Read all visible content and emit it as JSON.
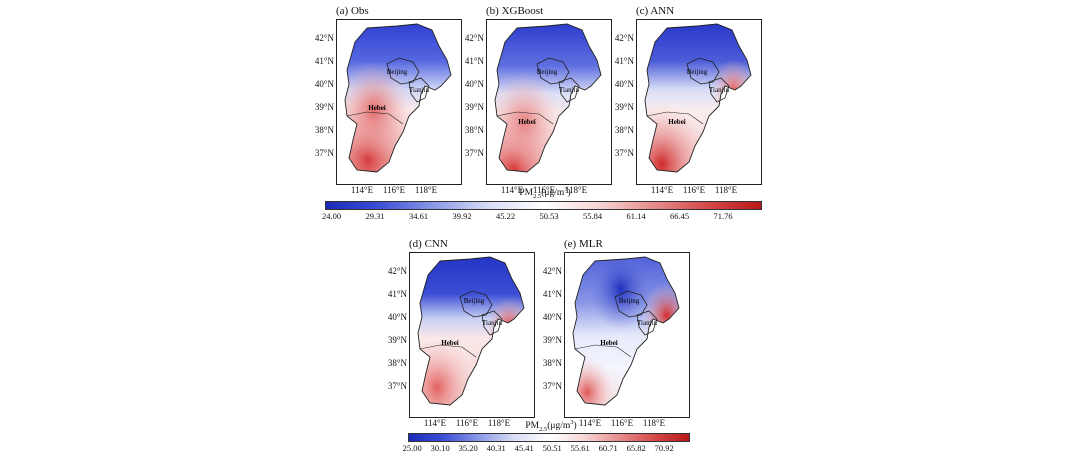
{
  "color_scale": {
    "low": "#1f30c8",
    "mid": "#ffffff",
    "high": "#d42020"
  },
  "lat_labels": [
    "42°N",
    "41°N",
    "40°N",
    "39°N",
    "38°N",
    "37°N"
  ],
  "lon_labels": [
    "114°E",
    "116°E",
    "118°E"
  ],
  "region_labels": {
    "beijing": "Beijing",
    "tianjin": "Tianjin",
    "hebei": "Hebei"
  },
  "panels": [
    {
      "title": "(a) Obs"
    },
    {
      "title": "(b) XGBoost"
    },
    {
      "title": "(c) ANN"
    },
    {
      "title": "(d) CNN"
    },
    {
      "title": "(e) MLR"
    }
  ],
  "colorbar_top": {
    "title_main": "PM",
    "title_sub": "2.5",
    "title_unit_a": "(μg/m",
    "title_sup": "3",
    "title_unit_b": ")",
    "labels": [
      "24.00",
      "29.31",
      "34.61",
      "39.92",
      "45.22",
      "50.53",
      "55.84",
      "61.14",
      "66.45",
      "71.76"
    ]
  },
  "colorbar_bottom": {
    "title_main": "PM",
    "title_sub": "2.5",
    "title_unit_a": "(μg/m",
    "title_sup": "3",
    "title_unit_b": ")",
    "labels": [
      "25.00",
      "30.10",
      "35.20",
      "40.31",
      "45.41",
      "50.51",
      "55.61",
      "60.71",
      "65.82",
      "70.92"
    ]
  }
}
